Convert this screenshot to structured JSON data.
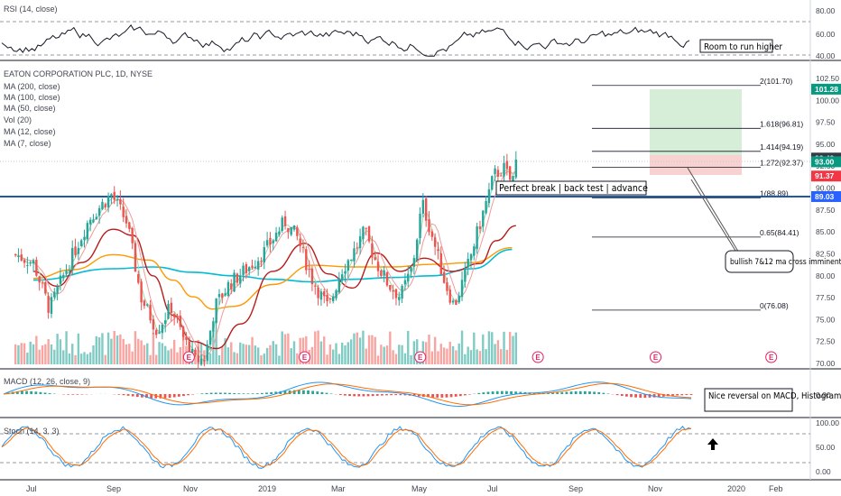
{
  "chart_data": {
    "type": "candlestick",
    "title": "EATON CORPORATION PLC, 1D, NYSE",
    "x_labels": [
      "Jul",
      "Sep",
      "Nov",
      "2019",
      "Mar",
      "May",
      "Jul",
      "Sep",
      "Nov",
      "2020",
      "Feb"
    ],
    "price_axis": {
      "ticks": [
        "102.50",
        "100.00",
        "97.50",
        "95.00",
        "92.50",
        "90.00",
        "87.50",
        "85.00",
        "82.50",
        "80.00",
        "77.50",
        "75.00",
        "72.50",
        "70.00"
      ],
      "range": [
        70,
        104
      ]
    },
    "price_badges": [
      {
        "value": "101.28",
        "color": "#089981"
      },
      {
        "value": "93.42",
        "color": "#363a45"
      },
      {
        "value": "93.00",
        "color": "#089981"
      },
      {
        "value": "91.37",
        "color": "#f23645"
      },
      {
        "value": "89.03",
        "color": "#2962ff"
      }
    ],
    "indicator_labels": [
      "MA (200, close)",
      "MA (100, close)",
      "MA (50, close)",
      "Vol (20)",
      "MA (12, close)",
      "MA (7, close)"
    ],
    "fib_levels": [
      {
        "label": "2(101.70)",
        "value": 101.7
      },
      {
        "label": "1.618(96.81)",
        "value": 96.81
      },
      {
        "label": "1.414(94.19)",
        "value": 94.19
      },
      {
        "label": "1.272(92.37)",
        "value": 92.37
      },
      {
        "label": "1(88.89)",
        "value": 88.89
      },
      {
        "label": "0.65(84.41)",
        "value": 84.41
      },
      {
        "label": "0(76.08)",
        "value": 76.08
      }
    ],
    "support_line": 89.03,
    "anchors": [
      {
        "m": 0,
        "p": 81.5
      },
      {
        "m": 0.4,
        "p": 76.2
      },
      {
        "m": 0.8,
        "p": 80.5
      },
      {
        "m": 1.4,
        "p": 86.5
      },
      {
        "m": 1.95,
        "p": 89.3
      },
      {
        "m": 2.35,
        "p": 86.0
      },
      {
        "m": 2.7,
        "p": 77.5
      },
      {
        "m": 3.1,
        "p": 73.8
      },
      {
        "m": 3.45,
        "p": 76.5
      },
      {
        "m": 3.75,
        "p": 73.0
      },
      {
        "m": 4.05,
        "p": 70.3
      },
      {
        "m": 4.3,
        "p": 70.6
      },
      {
        "m": 4.55,
        "p": 76.5
      },
      {
        "m": 4.9,
        "p": 79.0
      },
      {
        "m": 5.4,
        "p": 81.0
      },
      {
        "m": 5.8,
        "p": 82.8
      },
      {
        "m": 6.3,
        "p": 86.2
      },
      {
        "m": 6.6,
        "p": 84.5
      },
      {
        "m": 7.0,
        "p": 79.5
      },
      {
        "m": 7.4,
        "p": 76.2
      },
      {
        "m": 7.7,
        "p": 80.5
      },
      {
        "m": 8.0,
        "p": 82.5
      },
      {
        "m": 8.3,
        "p": 85.0
      },
      {
        "m": 8.6,
        "p": 81.5
      },
      {
        "m": 8.9,
        "p": 79.0
      },
      {
        "m": 9.2,
        "p": 77.6
      },
      {
        "m": 9.5,
        "p": 81.0
      },
      {
        "m": 9.75,
        "p": 88.3
      },
      {
        "m": 10.0,
        "p": 84.5
      },
      {
        "m": 10.3,
        "p": 79.5
      },
      {
        "m": 10.55,
        "p": 76.5
      },
      {
        "m": 10.85,
        "p": 80.5
      },
      {
        "m": 11.2,
        "p": 86.0
      },
      {
        "m": 11.55,
        "p": 91.5
      },
      {
        "m": 11.8,
        "p": 92.2
      },
      {
        "m": 12.0,
        "p": 90.5
      },
      {
        "m": 12.1,
        "p": 93.0
      }
    ],
    "ma_lines": {
      "ma200": [
        [
          0,
          79.5
        ],
        [
          2,
          80.8
        ],
        [
          3,
          81.0
        ],
        [
          4,
          80.4
        ],
        [
          5,
          80.0
        ],
        [
          6,
          79.6
        ],
        [
          7,
          79.3
        ],
        [
          8,
          79.6
        ],
        [
          9,
          79.8
        ],
        [
          10,
          80.0
        ],
        [
          11,
          80.8
        ],
        [
          12,
          83.0
        ]
      ],
      "ma100": [
        [
          0,
          79.7
        ],
        [
          1,
          80.7
        ],
        [
          2,
          82.4
        ],
        [
          2.9,
          81.8
        ],
        [
          3.5,
          79.5
        ],
        [
          4.0,
          77.6
        ],
        [
          4.5,
          76.2
        ],
        [
          5,
          76.5
        ],
        [
          6,
          79.0
        ],
        [
          7,
          81.2
        ],
        [
          8,
          81.0
        ],
        [
          9,
          81.0
        ],
        [
          10,
          81.3
        ],
        [
          11,
          81.5
        ],
        [
          12,
          83.2
        ]
      ],
      "ma50": [
        [
          0,
          80.5
        ],
        [
          0.6,
          78.8
        ],
        [
          1.2,
          81.5
        ],
        [
          2,
          85.3
        ],
        [
          2.5,
          84.6
        ],
        [
          3.0,
          80.0
        ],
        [
          3.5,
          75.5
        ],
        [
          4.0,
          72.5
        ],
        [
          4.6,
          71.7
        ],
        [
          5.2,
          74.5
        ],
        [
          6,
          80.5
        ],
        [
          6.8,
          83.7
        ],
        [
          7.4,
          80.2
        ],
        [
          8,
          78.6
        ],
        [
          8.6,
          82.6
        ],
        [
          9.2,
          80.5
        ],
        [
          9.8,
          82.0
        ],
        [
          10.5,
          80.5
        ],
        [
          11.2,
          81.4
        ],
        [
          11.6,
          84.0
        ],
        [
          12.1,
          85.7
        ]
      ]
    },
    "rsi_labels": {
      "title": "RSI (14, close)",
      "ticks": [
        "80.00",
        "60.00",
        "40.00"
      ]
    },
    "macd_labels": {
      "title": "MACD (12, 26, close, 9)",
      "ticks": [
        "0.00"
      ]
    },
    "stoch_labels": {
      "title": "Stoch (14, 3, 3)",
      "ticks": [
        "100.00",
        "50.00",
        "0.00"
      ]
    },
    "annotations": [
      "Room to run higher",
      "Perfect break | back test | advance",
      "bullish 7&12 ma cross imminent",
      "Nice reversal on MACD, Histogram ticks higher"
    ],
    "earnings_marker": "E"
  },
  "colors": {
    "up": "#26a69a",
    "down": "#ef5350",
    "ma200": "#00bcd4",
    "ma100": "#ff9800",
    "ma50": "#b71c1c",
    "ma12": "#ef9a9a",
    "ma7": "#a5d6a7",
    "support": "#1e5aa8",
    "macd": "#2196f3",
    "signal": "#ff6d00"
  }
}
